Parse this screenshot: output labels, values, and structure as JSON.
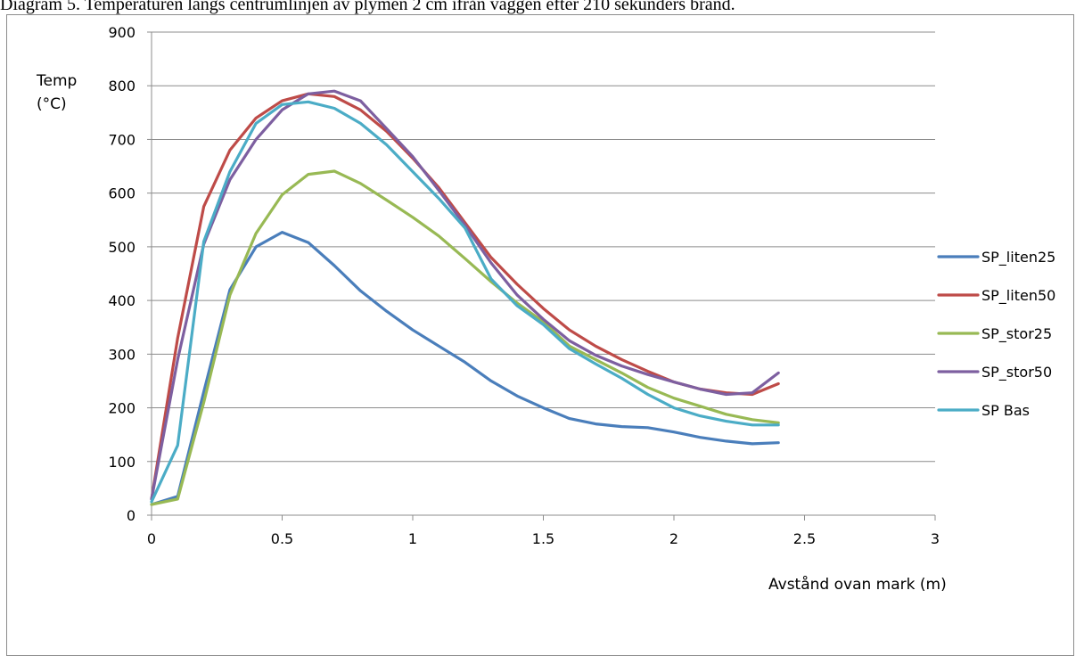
{
  "caption": "Diagram 5. Temperaturen längs centrumlinjen av plymen 2 cm ifrån väggen efter 210 sekunders brand.",
  "chart_data": {
    "type": "line",
    "ylabel_line1": "Temp",
    "ylabel_line2": "(°C)",
    "xlabel": "Avstånd ovan mark (m)",
    "xlim": [
      0,
      3
    ],
    "ylim": [
      0,
      900
    ],
    "x_ticks": [
      "0",
      "0.5",
      "1",
      "1.5",
      "2",
      "2.5",
      "3"
    ],
    "y_ticks": [
      "0",
      "100",
      "200",
      "300",
      "400",
      "500",
      "600",
      "700",
      "800",
      "900"
    ],
    "grid": "horizontal",
    "legend_position": "right",
    "series": [
      {
        "name": "SP_liten25",
        "color": "#4a7ebb",
        "x": [
          0,
          0.1,
          0.2,
          0.3,
          0.4,
          0.5,
          0.6,
          0.7,
          0.8,
          0.9,
          1.0,
          1.1,
          1.2,
          1.3,
          1.4,
          1.5,
          1.6,
          1.7,
          1.8,
          1.9,
          2.0,
          2.1,
          2.2,
          2.3,
          2.4
        ],
        "y": [
          20,
          35,
          230,
          420,
          500,
          527,
          508,
          465,
          418,
          380,
          345,
          315,
          285,
          250,
          222,
          200,
          180,
          170,
          165,
          163,
          155,
          145,
          138,
          133,
          135
        ]
      },
      {
        "name": "SP_liten50",
        "color": "#be4b48",
        "x": [
          0,
          0.1,
          0.2,
          0.3,
          0.4,
          0.5,
          0.6,
          0.7,
          0.8,
          0.9,
          1.0,
          1.1,
          1.2,
          1.3,
          1.4,
          1.5,
          1.6,
          1.7,
          1.8,
          1.9,
          2.0,
          2.1,
          2.2,
          2.3,
          2.4
        ],
        "y": [
          30,
          330,
          575,
          680,
          740,
          772,
          785,
          780,
          755,
          715,
          665,
          610,
          545,
          480,
          430,
          385,
          345,
          315,
          290,
          268,
          248,
          235,
          228,
          225,
          245
        ]
      },
      {
        "name": "SP_stor25",
        "color": "#98b954",
        "x": [
          0,
          0.1,
          0.2,
          0.3,
          0.4,
          0.5,
          0.6,
          0.7,
          0.8,
          0.9,
          1.0,
          1.1,
          1.2,
          1.3,
          1.4,
          1.5,
          1.6,
          1.7,
          1.8,
          1.9,
          2.0,
          2.1,
          2.2,
          2.3,
          2.4
        ],
        "y": [
          20,
          30,
          210,
          410,
          525,
          597,
          635,
          641,
          618,
          587,
          555,
          520,
          478,
          435,
          395,
          360,
          315,
          290,
          265,
          238,
          218,
          203,
          188,
          178,
          172
        ]
      },
      {
        "name": "SP_stor50",
        "color": "#7d5fa0",
        "x": [
          0,
          0.1,
          0.2,
          0.3,
          0.4,
          0.5,
          0.6,
          0.7,
          0.8,
          0.9,
          1.0,
          1.1,
          1.2,
          1.3,
          1.4,
          1.5,
          1.6,
          1.7,
          1.8,
          1.9,
          2.0,
          2.1,
          2.2,
          2.3,
          2.4
        ],
        "y": [
          30,
          290,
          505,
          625,
          700,
          755,
          785,
          790,
          772,
          720,
          668,
          605,
          540,
          470,
          410,
          365,
          325,
          298,
          278,
          262,
          248,
          235,
          225,
          228,
          265
        ]
      },
      {
        "name": "SP Bas",
        "color": "#4bacc6",
        "x": [
          0,
          0.1,
          0.2,
          0.3,
          0.4,
          0.5,
          0.6,
          0.7,
          0.8,
          0.9,
          1.0,
          1.1,
          1.2,
          1.3,
          1.4,
          1.5,
          1.6,
          1.7,
          1.8,
          1.9,
          2.0,
          2.1,
          2.2,
          2.3,
          2.4
        ],
        "y": [
          25,
          130,
          510,
          640,
          730,
          765,
          770,
          758,
          730,
          690,
          640,
          590,
          535,
          440,
          390,
          355,
          310,
          282,
          255,
          225,
          200,
          185,
          175,
          168,
          168
        ]
      }
    ]
  }
}
